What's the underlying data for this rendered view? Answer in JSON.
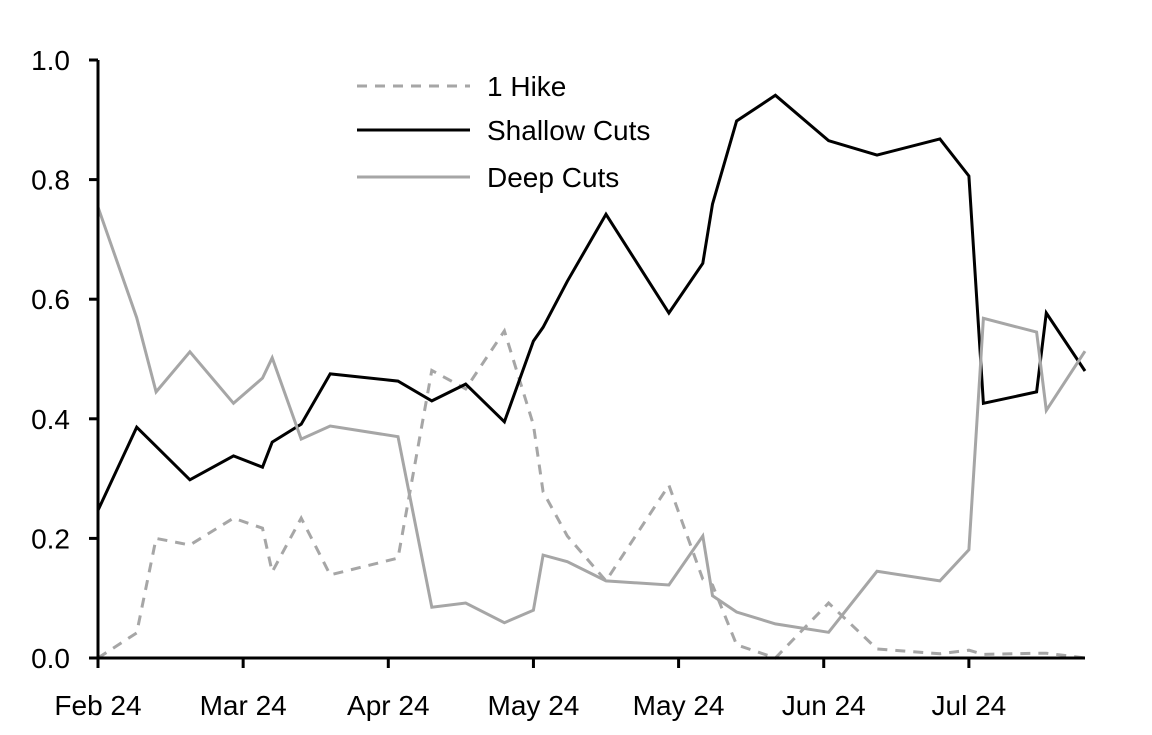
{
  "chart_data": {
    "type": "line",
    "title": "",
    "xlabel": "",
    "ylabel": "",
    "ylim": [
      0,
      1
    ],
    "yticks": [
      "0.0",
      "0.2",
      "0.4",
      "0.6",
      "0.8",
      "1.0"
    ],
    "xticks": [
      {
        "date": "2024-02-01",
        "label": "Feb 24"
      },
      {
        "date": "2024-03-02",
        "label": "Mar 24"
      },
      {
        "date": "2024-04-01",
        "label": "Apr 24"
      },
      {
        "date": "2024-05-01",
        "label": "May 24"
      },
      {
        "date": "2024-05-31",
        "label": "May 24"
      },
      {
        "date": "2024-06-30",
        "label": "Jun 24"
      },
      {
        "date": "2024-07-30",
        "label": "Jul 24"
      }
    ],
    "xlim": [
      "2024-02-01",
      "2024-08-23"
    ],
    "grid": false,
    "legend_position": "top-center",
    "x": [
      "2024-02-01",
      "2024-02-09",
      "2024-02-13",
      "2024-02-20",
      "2024-02-29",
      "2024-03-06",
      "2024-03-08",
      "2024-03-14",
      "2024-03-20",
      "2024-04-03",
      "2024-04-10",
      "2024-04-17",
      "2024-04-25",
      "2024-05-01",
      "2024-05-03",
      "2024-05-08",
      "2024-05-16",
      "2024-05-29",
      "2024-06-05",
      "2024-06-07",
      "2024-06-12",
      "2024-06-20",
      "2024-07-01",
      "2024-07-11",
      "2024-07-24",
      "2024-07-30",
      "2024-08-02",
      "2024-08-13",
      "2024-08-15",
      "2024-08-23"
    ],
    "series": [
      {
        "name": "1 Hike",
        "color": "#a6a6a6",
        "style": "dashed",
        "values": [
          0,
          0.042,
          0.2,
          0.189,
          0.234,
          0.217,
          0.144,
          0.234,
          0.139,
          0.167,
          0.481,
          0.45,
          0.547,
          0.39,
          0.278,
          0.204,
          0.129,
          0.289,
          0.132,
          0.122,
          0.022,
          0,
          0.092,
          0.015,
          0.007,
          0.013,
          0.006,
          0.008,
          0.008,
          0
        ]
      },
      {
        "name": "Shallow Cuts",
        "color": "#000000",
        "style": "solid",
        "values": [
          0.247,
          0.386,
          0.354,
          0.298,
          0.338,
          0.319,
          0.361,
          0.391,
          0.475,
          0.463,
          0.43,
          0.458,
          0.395,
          0.53,
          0.553,
          0.63,
          0.742,
          0.577,
          0.66,
          0.759,
          0.898,
          0.941,
          0.865,
          0.841,
          0.868,
          0.806,
          0.426,
          0.445,
          0.577,
          0.48
        ]
      },
      {
        "name": "Deep Cuts",
        "color": "#a6a6a6",
        "style": "solid",
        "values": [
          0.754,
          0.569,
          0.445,
          0.512,
          0.426,
          0.468,
          0.502,
          0.366,
          0.388,
          0.37,
          0.085,
          0.092,
          0.059,
          0.08,
          0.172,
          0.161,
          0.129,
          0.122,
          0.204,
          0.104,
          0.077,
          0.057,
          0.043,
          0.145,
          0.129,
          0.181,
          0.568,
          0.545,
          0.414,
          0.513
        ]
      }
    ]
  }
}
